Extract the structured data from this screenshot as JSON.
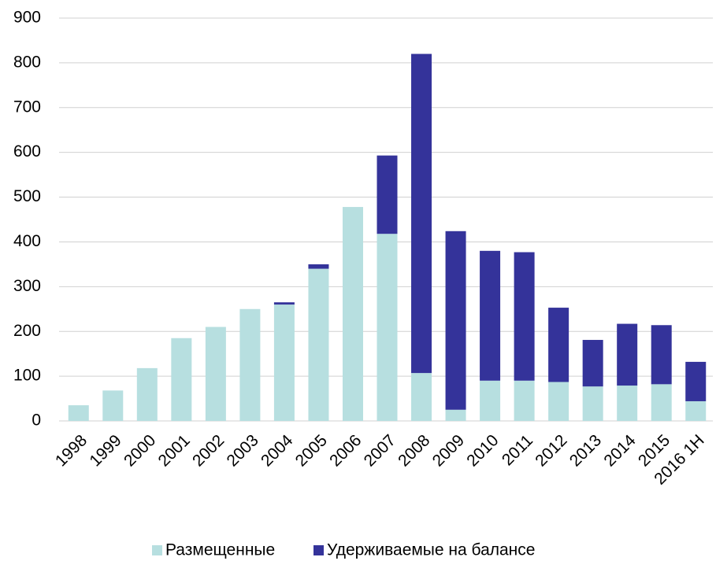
{
  "chart_data": {
    "type": "stacked_bar",
    "categories": [
      "1998",
      "1999",
      "2000",
      "2001",
      "2002",
      "2003",
      "2004",
      "2005",
      "2006",
      "2007",
      "2008",
      "2009",
      "2010",
      "2011",
      "2012",
      "2013",
      "2014",
      "2015",
      "2016 1H"
    ],
    "series": [
      {
        "name": "Размещенные",
        "color": "#b7dfe0",
        "values": [
          35,
          68,
          118,
          185,
          210,
          250,
          260,
          340,
          478,
          418,
          107,
          25,
          90,
          90,
          87,
          77,
          79,
          82,
          44
        ]
      },
      {
        "name": "Удерживаемые на балансе",
        "color": "#34339a",
        "values": [
          0,
          0,
          0,
          0,
          0,
          0,
          5,
          10,
          0,
          175,
          713,
          399,
          290,
          287,
          166,
          104,
          138,
          132,
          88
        ]
      }
    ],
    "ylim": [
      0,
      900
    ],
    "yticks": [
      0,
      100,
      200,
      300,
      400,
      500,
      600,
      700,
      800,
      900
    ],
    "grid": true,
    "legend": "bottom"
  }
}
